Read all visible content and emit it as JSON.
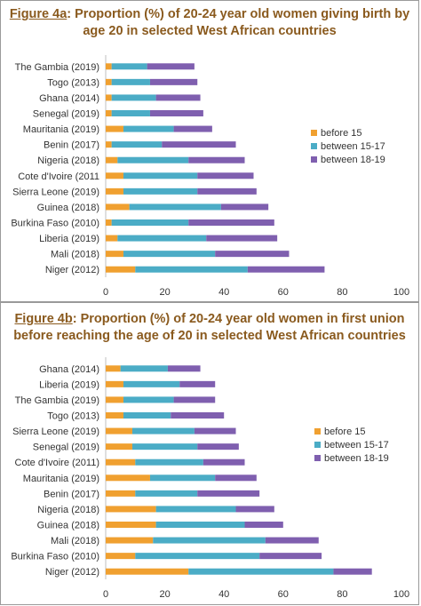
{
  "chart_data": [
    {
      "type": "bar",
      "orientation": "horizontal",
      "stacked": true,
      "title_prefix": "Figure 4a",
      "title_rest": ": Proportion (%) of 20-24 year old women giving birth by age 20 in selected West African countries",
      "xlim": [
        0,
        100
      ],
      "xticks": [
        "0",
        "20",
        "40",
        "60",
        "80",
        "100"
      ],
      "legend": "right",
      "categories": [
        "The Gambia (2019)",
        "Togo (2013)",
        "Ghana (2014)",
        "Senegal (2019)",
        "Mauritania (2019)",
        "Benin (2017)",
        "Nigeria (2018)",
        "Cote d'Ivoire (2011",
        "Sierra Leone (2019)",
        "Guinea (2018)",
        "Burkina Faso (2010)",
        "Liberia (2019)",
        "Mali (2018)",
        "Niger (2012)"
      ],
      "series": [
        {
          "name": "before 15",
          "color": "#f0a030",
          "values": [
            2,
            2,
            2,
            2,
            6,
            2,
            4,
            6,
            6,
            8,
            2,
            4,
            6,
            10
          ]
        },
        {
          "name": "between 15-17",
          "color": "#4bacc6",
          "values": [
            12,
            13,
            15,
            13,
            17,
            17,
            24,
            25,
            25,
            31,
            26,
            30,
            31,
            38
          ]
        },
        {
          "name": "between 18-19",
          "color": "#7f5faf",
          "values": [
            16,
            16,
            15,
            18,
            13,
            25,
            19,
            19,
            20,
            16,
            29,
            24,
            25,
            26
          ]
        }
      ]
    },
    {
      "type": "bar",
      "orientation": "horizontal",
      "stacked": true,
      "title_prefix": "Figure 4b",
      "title_rest": ": Proportion (%) of 20-24 year old women in first union before reaching the age of 20 in selected West African countries",
      "xlim": [
        0,
        100
      ],
      "xticks": [
        "0",
        "20",
        "40",
        "60",
        "80",
        "100"
      ],
      "legend": "right",
      "categories": [
        "Ghana (2014)",
        "Liberia (2019)",
        "The Gambia (2019)",
        "Togo (2013)",
        "Sierra Leone (2019)",
        "Senegal (2019)",
        "Cote d'Ivoire (2011)",
        "Mauritania (2019)",
        "Benin (2017)",
        "Nigeria (2018)",
        "Guinea (2018)",
        "Mali (2018)",
        "Burkina Faso (2010)",
        "Niger (2012)"
      ],
      "series": [
        {
          "name": "before 15",
          "color": "#f0a030",
          "values": [
            5,
            6,
            6,
            6,
            9,
            9,
            10,
            15,
            10,
            17,
            17,
            16,
            10,
            28
          ]
        },
        {
          "name": "between 15-17",
          "color": "#4bacc6",
          "values": [
            16,
            19,
            17,
            16,
            21,
            22,
            23,
            22,
            21,
            27,
            30,
            38,
            42,
            49
          ]
        },
        {
          "name": "between 18-19",
          "color": "#7f5faf",
          "values": [
            11,
            12,
            14,
            18,
            14,
            14,
            14,
            14,
            21,
            13,
            13,
            18,
            21,
            13
          ]
        }
      ]
    }
  ]
}
